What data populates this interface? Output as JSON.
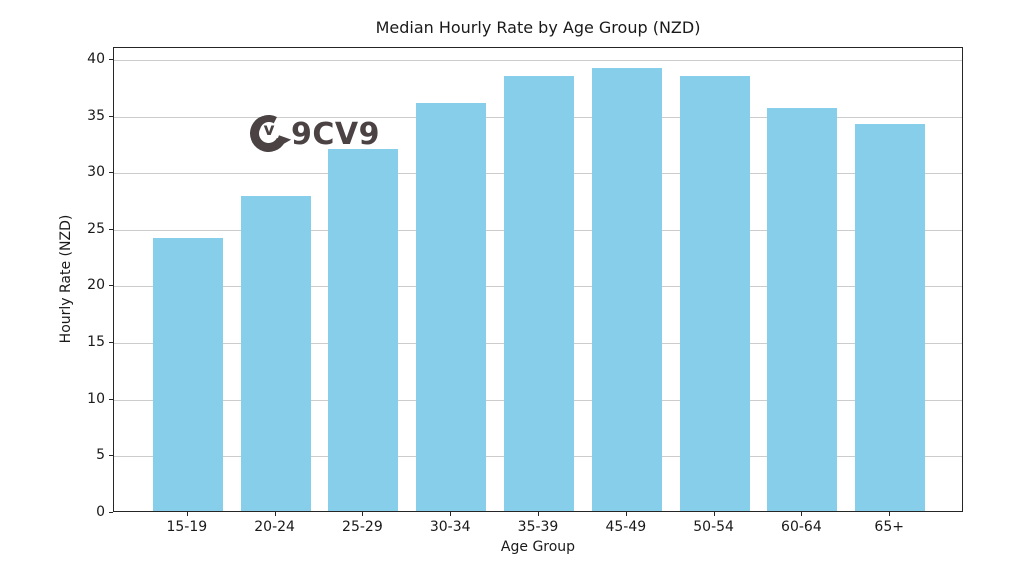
{
  "branding": {
    "logo_text": "9CV9",
    "logo_letter": "v",
    "logo_color": "#4a4243"
  },
  "chart_data": {
    "type": "bar",
    "title": "Median Hourly Rate by Age Group (NZD)",
    "xlabel": "Age Group",
    "ylabel": "Hourly Rate (NZD)",
    "categories": [
      "15-19",
      "20-24",
      "25-29",
      "30-34",
      "35-39",
      "45-49",
      "50-54",
      "60-64",
      "65+"
    ],
    "values": [
      24.1,
      27.8,
      32.0,
      36.0,
      38.4,
      39.1,
      38.4,
      35.6,
      34.2
    ],
    "yticks": [
      0,
      5,
      10,
      15,
      20,
      25,
      30,
      35,
      40
    ],
    "ylim": [
      0,
      41.05
    ],
    "grid": true,
    "legend_position": "none",
    "bar_color": "#87CEEB",
    "grid_color": "#cccccc",
    "axis_color": "#262626"
  }
}
